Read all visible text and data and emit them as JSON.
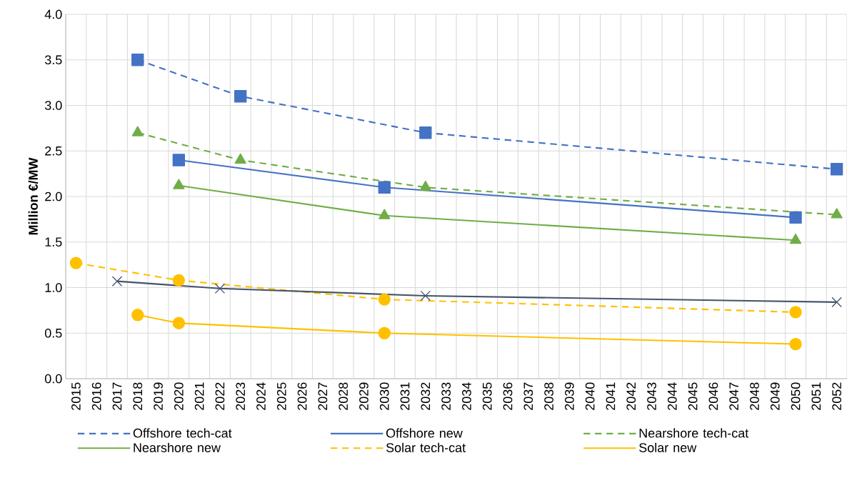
{
  "chart_data": {
    "type": "line",
    "ylabel": "Million €/MW",
    "categories": [
      "2015",
      "2016",
      "2017",
      "2018",
      "2019",
      "2020",
      "2021",
      "2022",
      "2023",
      "2024",
      "2025",
      "2026",
      "2027",
      "2028",
      "2029",
      "2030",
      "2031",
      "2032",
      "2033",
      "2034",
      "2035",
      "2036",
      "2037",
      "2038",
      "2039",
      "2040",
      "2041",
      "2042",
      "2043",
      "2044",
      "2045",
      "2046",
      "2047",
      "2048",
      "2049",
      "2050",
      "2051",
      "2052"
    ],
    "ylim": [
      0,
      4
    ],
    "yticks": [
      {
        "value": 0,
        "label": "0.0"
      },
      {
        "value": 0.5,
        "label": "0.5"
      },
      {
        "value": 1,
        "label": "1.0"
      },
      {
        "value": 1.5,
        "label": "1.5"
      },
      {
        "value": 2,
        "label": "2.0"
      },
      {
        "value": 2.5,
        "label": "2.5"
      },
      {
        "value": 3,
        "label": "3.0"
      },
      {
        "value": 3.5,
        "label": "3.5"
      },
      {
        "value": 4,
        "label": "4.0"
      }
    ],
    "grid": true,
    "legend": "bottom",
    "series": [
      {
        "name": "Offshore tech-cat",
        "color": "#4472c4",
        "marker": "square",
        "line_style": "dashed",
        "values": [
          null,
          null,
          null,
          3.5,
          null,
          null,
          null,
          null,
          3.1,
          null,
          null,
          null,
          null,
          null,
          null,
          null,
          null,
          2.7,
          null,
          null,
          null,
          null,
          null,
          null,
          null,
          null,
          null,
          null,
          null,
          null,
          null,
          null,
          null,
          null,
          null,
          null,
          null,
          2.3
        ]
      },
      {
        "name": "Offshore new",
        "color": "#4472c4",
        "marker": "square",
        "line_style": "solid",
        "values": [
          null,
          null,
          null,
          null,
          null,
          2.4,
          null,
          null,
          null,
          null,
          null,
          null,
          null,
          null,
          null,
          2.1,
          null,
          null,
          null,
          null,
          null,
          null,
          null,
          null,
          null,
          null,
          null,
          null,
          null,
          null,
          null,
          null,
          null,
          null,
          null,
          1.77,
          null,
          null
        ]
      },
      {
        "name": "Nearshore tech-cat",
        "color": "#70ad47",
        "marker": "triangle",
        "line_style": "dashed",
        "values": [
          null,
          null,
          null,
          2.7,
          null,
          null,
          null,
          null,
          2.4,
          null,
          null,
          null,
          null,
          null,
          null,
          null,
          null,
          2.1,
          null,
          null,
          null,
          null,
          null,
          null,
          null,
          null,
          null,
          null,
          null,
          null,
          null,
          null,
          null,
          null,
          null,
          null,
          null,
          1.8
        ]
      },
      {
        "name": "Nearshore new",
        "color": "#70ad47",
        "marker": "triangle",
        "line_style": "solid",
        "values": [
          null,
          null,
          null,
          null,
          null,
          2.12,
          null,
          null,
          null,
          null,
          null,
          null,
          null,
          null,
          null,
          1.79,
          null,
          null,
          null,
          null,
          null,
          null,
          null,
          null,
          null,
          null,
          null,
          null,
          null,
          null,
          null,
          null,
          null,
          null,
          null,
          1.52,
          null,
          null
        ]
      },
      {
        "name": "Solar tech-cat",
        "color": "#ffc000",
        "marker": "circle",
        "line_style": "dashed",
        "values": [
          1.27,
          null,
          null,
          null,
          null,
          1.08,
          null,
          null,
          null,
          null,
          null,
          null,
          null,
          null,
          null,
          0.87,
          null,
          null,
          null,
          null,
          null,
          null,
          null,
          null,
          null,
          null,
          null,
          null,
          null,
          null,
          null,
          null,
          null,
          null,
          null,
          0.73,
          null,
          null
        ]
      },
      {
        "name": "Solar new",
        "color": "#ffc000",
        "marker": "circle",
        "line_style": "solid",
        "values": [
          null,
          null,
          null,
          0.7,
          null,
          0.61,
          null,
          null,
          null,
          null,
          null,
          null,
          null,
          null,
          null,
          0.5,
          null,
          null,
          null,
          null,
          null,
          null,
          null,
          null,
          null,
          null,
          null,
          null,
          null,
          null,
          null,
          null,
          null,
          null,
          null,
          0.38,
          null,
          null
        ]
      },
      {
        "color": "#44546a",
        "marker": "cross",
        "line_style": "solid",
        "values": [
          null,
          null,
          1.07,
          null,
          null,
          null,
          null,
          0.99,
          null,
          null,
          null,
          null,
          null,
          null,
          null,
          null,
          null,
          0.91,
          null,
          null,
          null,
          null,
          null,
          null,
          null,
          null,
          null,
          null,
          null,
          null,
          null,
          null,
          null,
          null,
          null,
          null,
          null,
          0.84
        ]
      }
    ]
  }
}
